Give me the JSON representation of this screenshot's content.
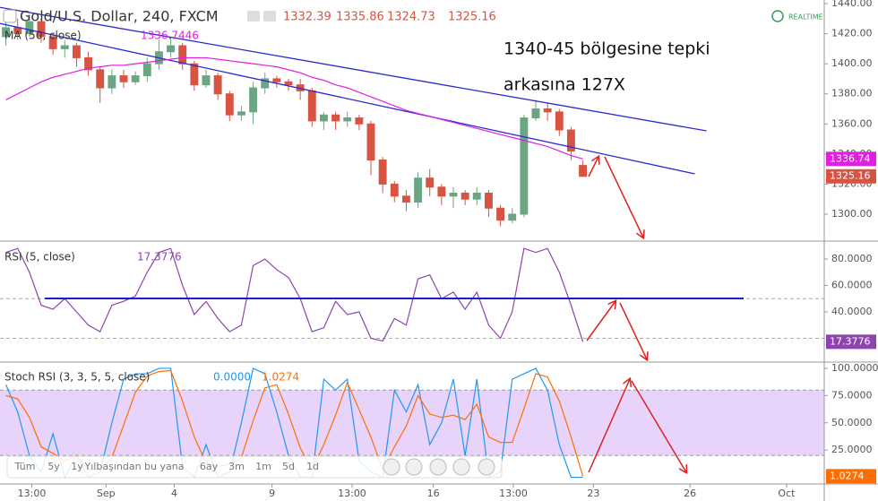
{
  "realtime": "REALTIME",
  "toolbar": [
    "Tüm",
    "5y",
    "1y",
    "Yılbaşından bu yana",
    "6ay",
    "3m",
    "1m",
    "5d",
    "1d"
  ],
  "chart_data": [
    {
      "type": "candlestick",
      "title": "Gold/U.S. Dollar, 240, FXCM",
      "open": [
        1418,
        1424,
        1420,
        1428,
        1418,
        1410,
        1412,
        1404,
        1396,
        1384,
        1392,
        1388,
        1392,
        1400,
        1408,
        1412,
        1400,
        1386,
        1392,
        1380,
        1366,
        1368,
        1384,
        1390,
        1388,
        1386,
        1382,
        1362,
        1366,
        1362,
        1364,
        1360,
        1336,
        1320,
        1312,
        1308,
        1324,
        1318,
        1312,
        1314,
        1310,
        1314,
        1304,
        1296,
        1300,
        1364,
        1370,
        1368,
        1356,
        1332.39
      ],
      "high": [
        1428,
        1430,
        1433,
        1430,
        1420,
        1416,
        1414,
        1408,
        1398,
        1396,
        1396,
        1395,
        1404,
        1416,
        1418,
        1414,
        1402,
        1396,
        1394,
        1382,
        1372,
        1388,
        1394,
        1392,
        1390,
        1390,
        1384,
        1368,
        1368,
        1368,
        1366,
        1362,
        1338,
        1322,
        1316,
        1328,
        1330,
        1320,
        1318,
        1316,
        1318,
        1316,
        1306,
        1304,
        1366,
        1376,
        1374,
        1370,
        1358,
        1335.86
      ],
      "low": [
        1412,
        1416,
        1418,
        1414,
        1406,
        1404,
        1398,
        1392,
        1374,
        1380,
        1384,
        1386,
        1388,
        1396,
        1404,
        1396,
        1382,
        1384,
        1376,
        1362,
        1362,
        1360,
        1380,
        1384,
        1382,
        1376,
        1358,
        1356,
        1356,
        1358,
        1356,
        1326,
        1314,
        1308,
        1302,
        1304,
        1312,
        1306,
        1304,
        1306,
        1306,
        1298,
        1292,
        1294,
        1298,
        1362,
        1362,
        1352,
        1336,
        1324.73
      ],
      "close": [
        1424,
        1420,
        1428,
        1418,
        1410,
        1412,
        1404,
        1396,
        1384,
        1392,
        1388,
        1392,
        1400,
        1408,
        1412,
        1400,
        1386,
        1392,
        1380,
        1366,
        1368,
        1384,
        1390,
        1388,
        1386,
        1382,
        1362,
        1366,
        1362,
        1364,
        1360,
        1336,
        1320,
        1312,
        1308,
        1324,
        1318,
        1312,
        1314,
        1310,
        1314,
        1304,
        1296,
        1300,
        1364,
        1370,
        1368,
        1356,
        1342,
        1325.16
      ],
      "up_color": "#6ba583",
      "down_color": "#d75442",
      "ylim": [
        1282.7,
        1442.4
      ],
      "yticks": [
        {
          "value": 1300,
          "label": "1300.00"
        },
        {
          "value": 1320,
          "label": "1320.00"
        },
        {
          "value": 1340,
          "label": "1340.00"
        },
        {
          "value": 1360,
          "label": "1360.00"
        },
        {
          "value": 1380,
          "label": "1380.00"
        },
        {
          "value": 1400,
          "label": "1400.00"
        },
        {
          "value": 1420,
          "label": "1420.00"
        },
        {
          "value": 1440,
          "label": "1440.00"
        }
      ],
      "series": [
        {
          "name": "MA (50, close)",
          "color": "#e020e0",
          "legend_value": 1336.7446,
          "last_label": "1336.74",
          "values": [
            1376,
            1380,
            1384,
            1388,
            1391,
            1393,
            1395,
            1397,
            1398,
            1399,
            1399,
            1400,
            1401,
            1402,
            1403,
            1404,
            1404,
            1404,
            1403,
            1402,
            1401,
            1400,
            1399,
            1398,
            1396,
            1394,
            1391,
            1389,
            1386,
            1384,
            1381,
            1378,
            1375,
            1372,
            1369,
            1367,
            1365,
            1363,
            1361,
            1359,
            1357,
            1355,
            1353,
            1351,
            1349,
            1347,
            1345,
            1342,
            1339,
            1336.7446
          ]
        }
      ],
      "trendlines": [
        {
          "color": "#2a2ad0",
          "x": [
            -0.5,
            59.5
          ],
          "y": [
            1437.5,
            1355.4
          ]
        },
        {
          "color": "#2a2ad0",
          "x": [
            -0.5,
            58.5
          ],
          "y": [
            1426.8,
            1326.8
          ]
        }
      ],
      "annotations": [
        "1340-45 bölgesine tepki",
        "arkasına 127X"
      ]
    },
    {
      "type": "line",
      "title": "RSI (5, close)",
      "series": [
        {
          "color": "#8e44ad",
          "values": [
            85,
            88,
            70,
            45,
            42,
            50,
            40,
            30,
            25,
            45,
            48,
            52,
            70,
            85,
            88,
            60,
            38,
            48,
            35,
            25,
            30,
            75,
            80,
            72,
            66,
            50,
            25,
            28,
            48,
            38,
            40,
            20,
            18,
            35,
            30,
            65,
            68,
            50,
            55,
            42,
            55,
            30,
            20,
            40,
            88,
            85,
            88,
            70,
            45,
            17.3776
          ]
        }
      ],
      "levels": [
        50,
        20
      ],
      "ylim": [
        2.7,
        92.9
      ],
      "yticks": [
        {
          "value": 40,
          "label": "40.0000"
        },
        {
          "value": 60,
          "label": "60.0000"
        },
        {
          "value": 80,
          "label": "80.0000"
        }
      ]
    },
    {
      "type": "line",
      "title": "Stoch RSI (3, 3, 5, 5, close)",
      "series": [
        {
          "color": "#2196f3",
          "last_label": "0.0000",
          "values": [
            85,
            60,
            20,
            5,
            40,
            0,
            20,
            0,
            5,
            50,
            90,
            95,
            95,
            100,
            100,
            10,
            0,
            30,
            0,
            5,
            50,
            100,
            95,
            60,
            20,
            0,
            0,
            90,
            80,
            90,
            15,
            5,
            0,
            80,
            60,
            85,
            30,
            50,
            90,
            20,
            90,
            0,
            5,
            90,
            95,
            100,
            80,
            30,
            0,
            0
          ]
        },
        {
          "color": "#ff6d00",
          "values": [
            75,
            72,
            55,
            28,
            22,
            15,
            20,
            7,
            8,
            18,
            48,
            78,
            93,
            97,
            98,
            70,
            37,
            13,
            10,
            12,
            18,
            52,
            82,
            85,
            58,
            27,
            7,
            30,
            57,
            87,
            62,
            37,
            7,
            28,
            47,
            75,
            58,
            55,
            57,
            53,
            67,
            37,
            32,
            32,
            63,
            95,
            92,
            70,
            37,
            1.0274
          ]
        }
      ],
      "band": [
        20,
        80
      ],
      "band_color": "#e8d4fb",
      "ylim": [
        -6.1,
        104.9
      ],
      "yticks": [
        {
          "value": 25,
          "label": "25.0000"
        },
        {
          "value": 50,
          "label": "50.0000"
        },
        {
          "value": 75,
          "label": "75.0000"
        },
        {
          "value": 100,
          "label": "100.0000"
        }
      ],
      "xlim": [
        -0.5,
        69.5
      ],
      "xticks": [
        {
          "value": 2.2,
          "label": "13:00"
        },
        {
          "value": 8.5,
          "label": "Sep"
        },
        {
          "value": 14.3,
          "label": "4"
        },
        {
          "value": 22.6,
          "label": "9"
        },
        {
          "value": 29.4,
          "label": "13:00"
        },
        {
          "value": 36.3,
          "label": "16"
        },
        {
          "value": 43.1,
          "label": "13:00"
        },
        {
          "value": 49.9,
          "label": "23"
        },
        {
          "value": 58.1,
          "label": "26"
        },
        {
          "value": 66.3,
          "label": "Oct"
        }
      ]
    }
  ]
}
